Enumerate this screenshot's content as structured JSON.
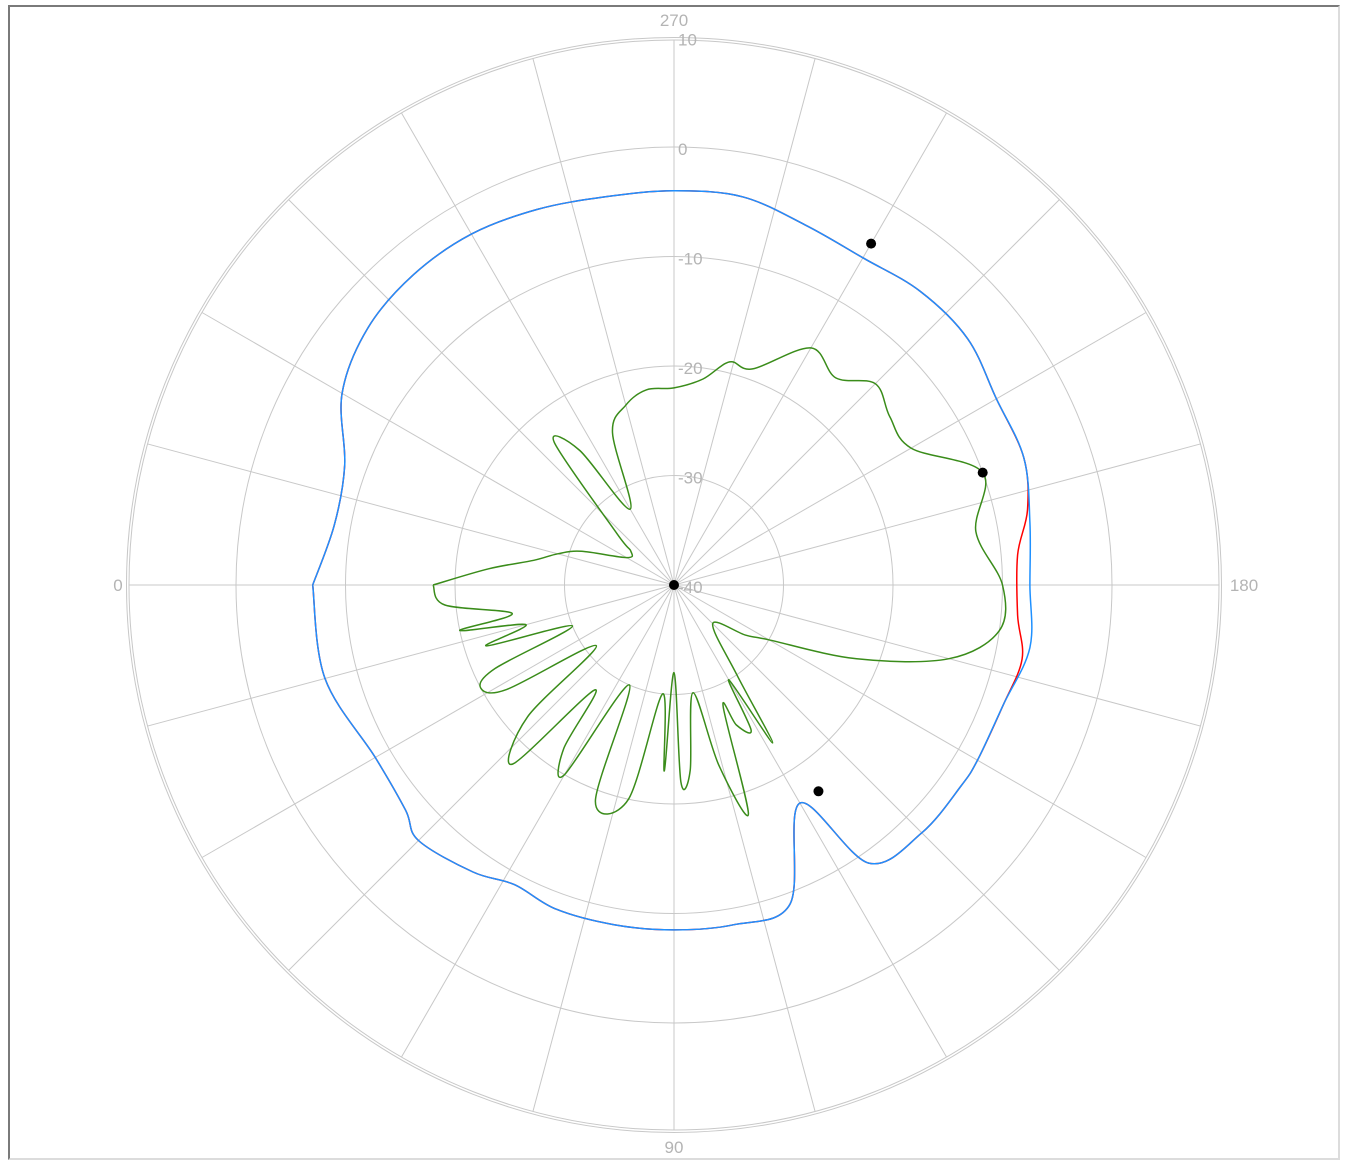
{
  "chart_data": {
    "type": "polar",
    "angle_labels": [
      "0",
      "90",
      "180",
      "270"
    ],
    "radial_labels": [
      "10",
      "0",
      "-10",
      "-20",
      "-30",
      "-40"
    ],
    "radial_range": [
      -40,
      10
    ],
    "angular_divisions": 24,
    "grid": true,
    "series": [
      {
        "color": "#1e90ff",
        "points": [
          [
            0,
            -7
          ],
          [
            15,
            -7
          ],
          [
            30,
            -8.5
          ],
          [
            40,
            -8
          ],
          [
            45,
            -7
          ],
          [
            55,
            -8
          ],
          [
            62,
            -9
          ],
          [
            70,
            -8.5
          ],
          [
            80,
            -8.5
          ],
          [
            90,
            -8.5
          ],
          [
            100,
            -8.5
          ],
          [
            110,
            -9
          ],
          [
            120,
            -17
          ],
          [
            125,
            -9
          ],
          [
            135,
            -8
          ],
          [
            145,
            -8
          ],
          [
            150,
            -8
          ],
          [
            160,
            -8
          ],
          [
            170,
            -7
          ],
          [
            180,
            -7.5
          ],
          [
            190,
            -7
          ],
          [
            200,
            -6
          ],
          [
            210,
            -6
          ],
          [
            220,
            -5
          ],
          [
            230,
            -5
          ],
          [
            240,
            -5.5
          ],
          [
            250,
            -5
          ],
          [
            260,
            -4
          ],
          [
            270,
            -4
          ],
          [
            280,
            -4
          ],
          [
            290,
            -3.5
          ],
          [
            300,
            -3
          ],
          [
            310,
            -3
          ],
          [
            320,
            -3.5
          ],
          [
            330,
            -5
          ],
          [
            340,
            -8
          ],
          [
            350,
            -8.5
          ],
          [
            360,
            -7
          ]
        ]
      },
      {
        "color": "#ff0000",
        "points": [
          [
            0,
            -7
          ],
          [
            15,
            -7
          ],
          [
            30,
            -8.5
          ],
          [
            40,
            -8
          ],
          [
            45,
            -7
          ],
          [
            55,
            -8
          ],
          [
            62,
            -9
          ],
          [
            70,
            -8.5
          ],
          [
            80,
            -8.5
          ],
          [
            90,
            -8.5
          ],
          [
            100,
            -8.5
          ],
          [
            110,
            -9
          ],
          [
            120,
            -17
          ],
          [
            125,
            -9
          ],
          [
            135,
            -8
          ],
          [
            145,
            -8
          ],
          [
            150,
            -8
          ],
          [
            160,
            -8
          ],
          [
            168,
            -7.5
          ],
          [
            175,
            -8.5
          ],
          [
            185,
            -8.5
          ],
          [
            192,
            -7
          ],
          [
            200,
            -6
          ],
          [
            210,
            -6
          ],
          [
            220,
            -5
          ],
          [
            230,
            -5
          ],
          [
            240,
            -5.5
          ],
          [
            250,
            -5
          ],
          [
            260,
            -4
          ],
          [
            270,
            -4
          ],
          [
            280,
            -4
          ],
          [
            290,
            -3.5
          ],
          [
            300,
            -3
          ],
          [
            310,
            -3
          ],
          [
            320,
            -3.5
          ],
          [
            330,
            -5
          ],
          [
            340,
            -8
          ],
          [
            350,
            -8.5
          ],
          [
            360,
            -7
          ]
        ]
      },
      {
        "color": "#3a8c1a",
        "points": [
          [
            0,
            -18
          ],
          [
            5,
            -19
          ],
          [
            10,
            -25
          ],
          [
            12,
            -20
          ],
          [
            15,
            -26
          ],
          [
            18,
            -22
          ],
          [
            22,
            -30
          ],
          [
            25,
            -22
          ],
          [
            28,
            -20
          ],
          [
            32,
            -22
          ],
          [
            38,
            -31
          ],
          [
            42,
            -22
          ],
          [
            48,
            -18
          ],
          [
            53,
            -28
          ],
          [
            56,
            -22
          ],
          [
            60,
            -20
          ],
          [
            66,
            -30
          ],
          [
            70,
            -19
          ],
          [
            78,
            -20
          ],
          [
            84,
            -30
          ],
          [
            87,
            -23
          ],
          [
            90,
            -32
          ],
          [
            92,
            -22
          ],
          [
            95,
            -23
          ],
          [
            100,
            -30
          ],
          [
            104,
            -23
          ],
          [
            108,
            -18
          ],
          [
            112,
            -28
          ],
          [
            114,
            -26
          ],
          [
            118,
            -25
          ],
          [
            120,
            -30
          ],
          [
            122,
            -23
          ],
          [
            125,
            -30
          ],
          [
            135,
            -35
          ],
          [
            145,
            -32
          ],
          [
            150,
            -30
          ],
          [
            158,
            -22
          ],
          [
            165,
            -14
          ],
          [
            172,
            -10
          ],
          [
            180,
            -10
          ],
          [
            190,
            -12
          ],
          [
            200,
            -10
          ],
          [
            210,
            -15
          ],
          [
            218,
            -15
          ],
          [
            225,
            -14
          ],
          [
            232,
            -16
          ],
          [
            240,
            -15
          ],
          [
            250,
            -19
          ],
          [
            256,
            -19
          ],
          [
            262,
            -21
          ],
          [
            270,
            -22
          ],
          [
            278,
            -22
          ],
          [
            285,
            -23
          ],
          [
            292,
            -25
          ],
          [
            300,
            -32
          ],
          [
            305,
            -25
          ],
          [
            310,
            -23
          ],
          [
            318,
            -33
          ],
          [
            322,
            -35
          ],
          [
            330,
            -35
          ],
          [
            340,
            -31
          ],
          [
            345,
            -29
          ],
          [
            350,
            -27
          ],
          [
            355,
            -23
          ],
          [
            360,
            -18
          ]
        ]
      }
    ],
    "markers": [
      {
        "angle": 0,
        "value": -40
      },
      {
        "angle": 125,
        "value": -17
      },
      {
        "angle": 200,
        "value": -10
      },
      {
        "angle": 240,
        "value": -4
      }
    ]
  }
}
